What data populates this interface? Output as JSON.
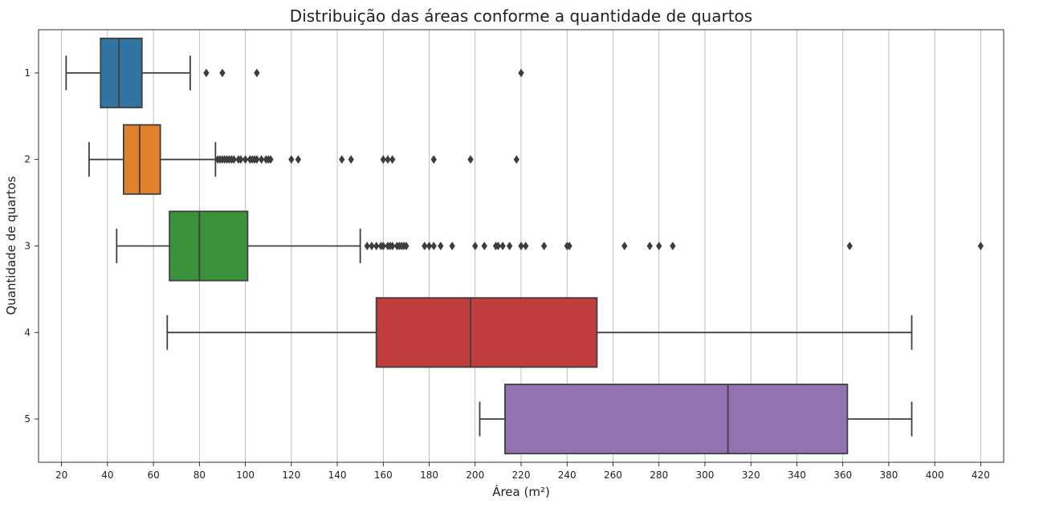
{
  "chart_data": {
    "type": "boxplot",
    "orientation": "horizontal",
    "title": "Distribuição das áreas conforme a quantidade de quartos",
    "xlabel": "Área (m²)",
    "ylabel": "Quantidade de quartos",
    "xlim": [
      10,
      430
    ],
    "xticks": [
      20,
      40,
      60,
      80,
      100,
      120,
      140,
      160,
      180,
      200,
      220,
      240,
      260,
      280,
      300,
      320,
      340,
      360,
      380,
      400,
      420
    ],
    "grid": "vertical",
    "categories": [
      "1",
      "2",
      "3",
      "4",
      "5"
    ],
    "series": [
      {
        "category": "1",
        "color": "#3274a1",
        "whisker_low": 22,
        "q1": 37,
        "median": 45,
        "q3": 55,
        "whisker_high": 76,
        "outliers": [
          83,
          90,
          105,
          220
        ]
      },
      {
        "category": "2",
        "color": "#e1812c",
        "whisker_low": 32,
        "q1": 47,
        "median": 54,
        "q3": 63,
        "whisker_high": 87,
        "outliers": [
          88,
          89,
          90,
          91,
          92,
          93,
          94,
          95,
          97,
          98,
          100,
          102,
          103,
          104,
          105,
          107,
          109,
          110,
          111,
          120,
          123,
          142,
          146,
          160,
          162,
          164,
          182,
          198,
          218
        ]
      },
      {
        "category": "3",
        "color": "#3a923a",
        "whisker_low": 44,
        "q1": 67,
        "median": 80,
        "q3": 101,
        "whisker_high": 150,
        "outliers": [
          153,
          155,
          157,
          159,
          160,
          162,
          163,
          164,
          166,
          167,
          168,
          169,
          170,
          178,
          180,
          182,
          185,
          190,
          200,
          204,
          209,
          210,
          212,
          215,
          220,
          222,
          230,
          240,
          241,
          265,
          276,
          280,
          286,
          363,
          420
        ]
      },
      {
        "category": "4",
        "color": "#c03d3e",
        "whisker_low": 66,
        "q1": 157,
        "median": 198,
        "q3": 253,
        "whisker_high": 390,
        "outliers": []
      },
      {
        "category": "5",
        "color": "#9372b2",
        "whisker_low": 202,
        "q1": 213,
        "median": 310,
        "q3": 362,
        "whisker_high": 390,
        "outliers": []
      }
    ]
  }
}
